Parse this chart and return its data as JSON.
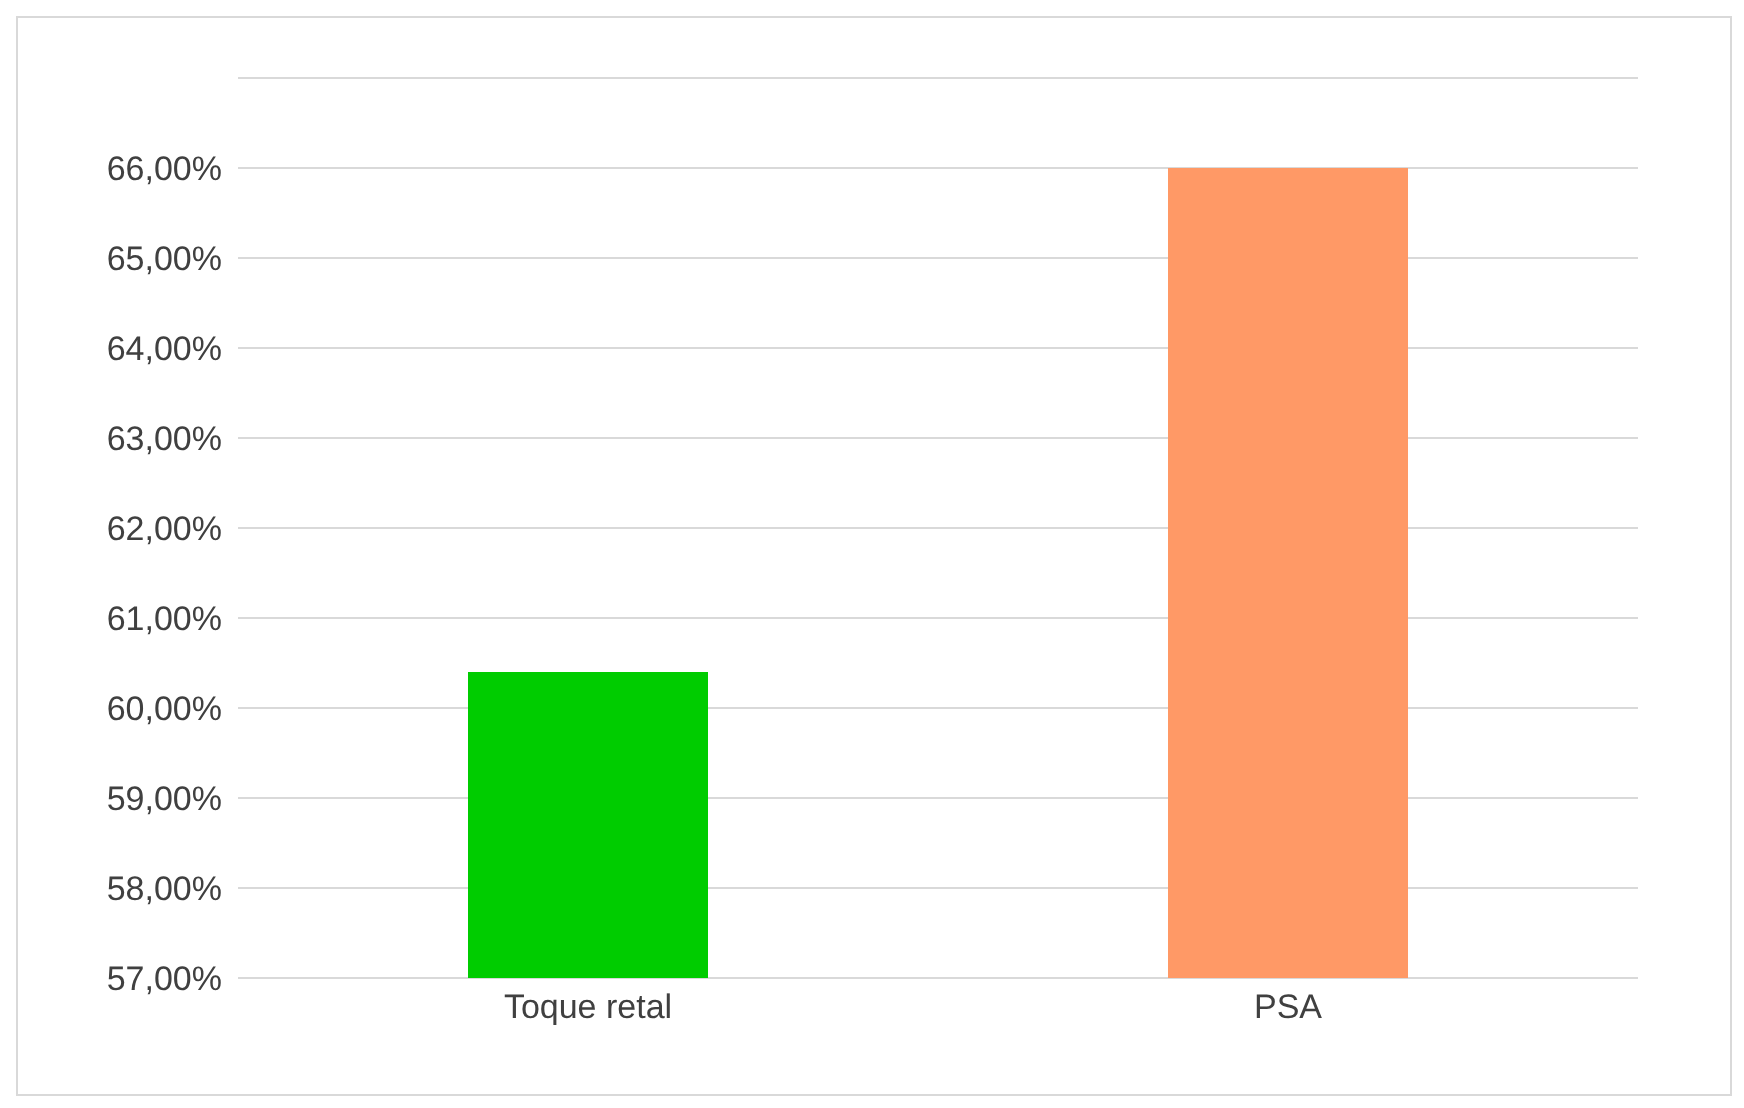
{
  "chart_data": {
    "type": "bar",
    "categories": [
      "Toque retal",
      "PSA"
    ],
    "values": [
      60.4,
      66.0
    ],
    "colors": [
      "#00cc00",
      "#ff9966"
    ],
    "ylim": [
      57,
      67
    ],
    "yticks": [
      {
        "value": 57,
        "label": "57,00%"
      },
      {
        "value": 58,
        "label": "58,00%"
      },
      {
        "value": 59,
        "label": "59,00%"
      },
      {
        "value": 60,
        "label": "60,00%"
      },
      {
        "value": 61,
        "label": "61,00%"
      },
      {
        "value": 62,
        "label": "62,00%"
      },
      {
        "value": 63,
        "label": "63,00%"
      },
      {
        "value": 64,
        "label": "64,00%"
      },
      {
        "value": 65,
        "label": "65,00%"
      },
      {
        "value": 66,
        "label": "66,00%"
      },
      {
        "value": 67,
        "label": null
      }
    ],
    "grid": "y"
  }
}
